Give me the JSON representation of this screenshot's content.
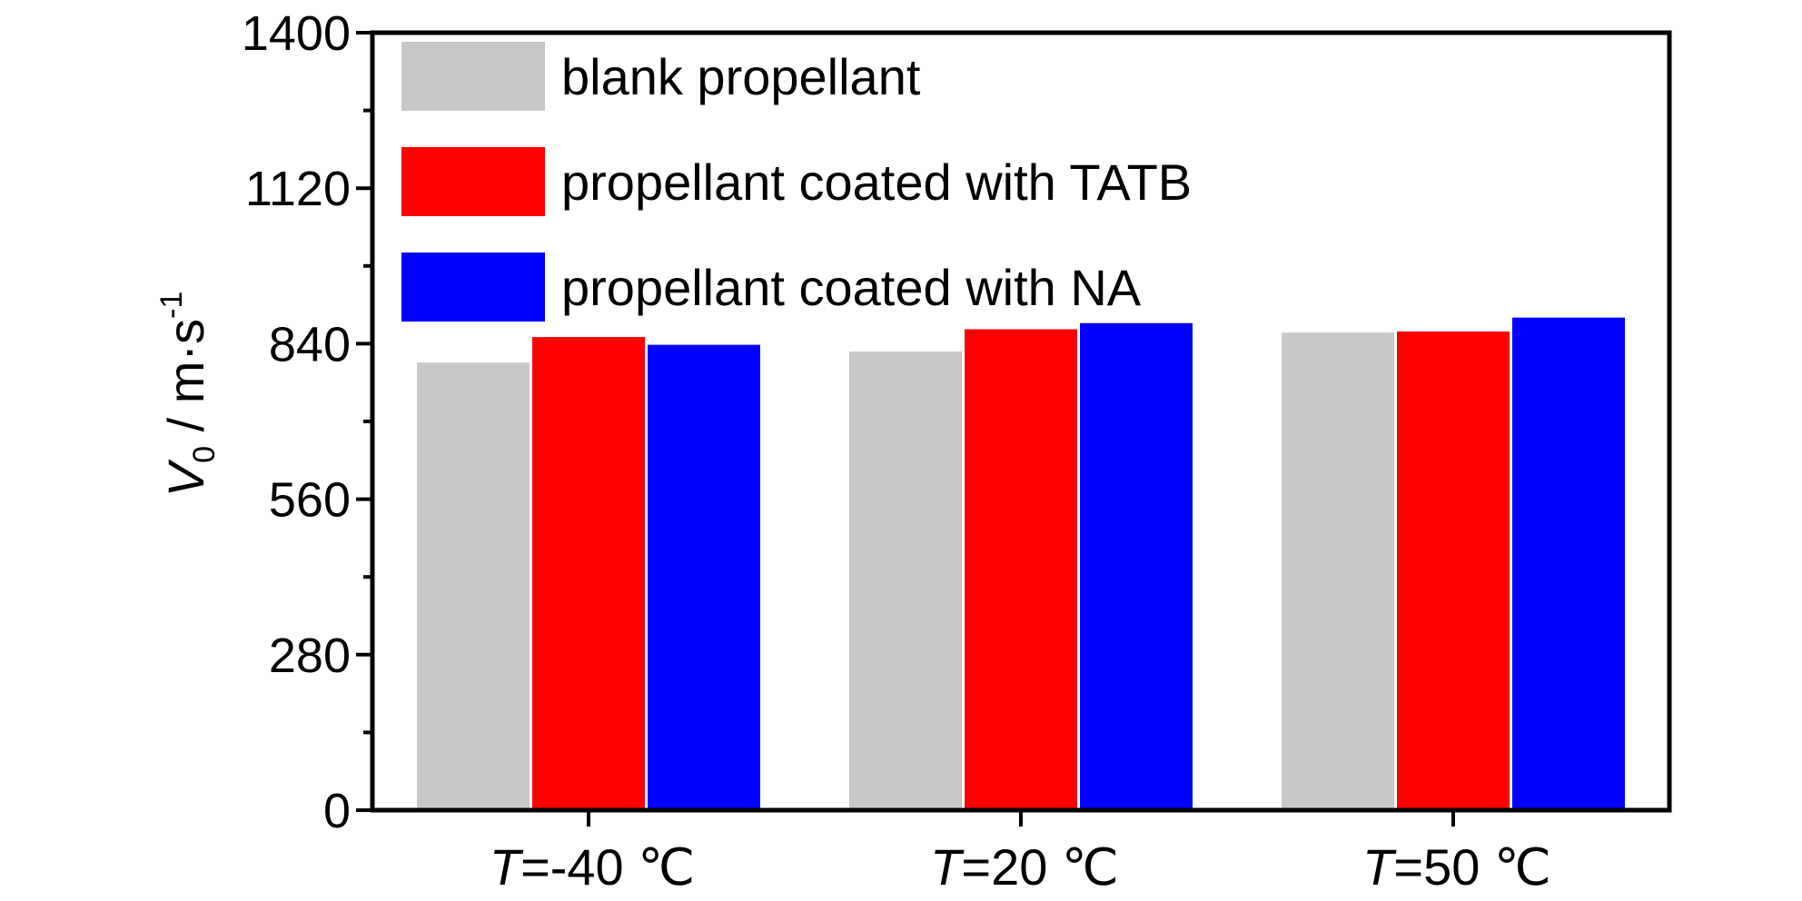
{
  "chart_data": {
    "type": "bar",
    "title": "",
    "xlabel": "",
    "ylabel": {
      "italic": "V",
      "subscript": "0",
      "rest": " / m·s",
      "superscript": "-1"
    },
    "ylim": [
      0,
      1400
    ],
    "yticks": [
      0,
      280,
      560,
      840,
      1120,
      1400
    ],
    "categories": [
      {
        "italic": "T",
        "rest": "=-40 ℃"
      },
      {
        "italic": "T",
        "rest": "=20 ℃"
      },
      {
        "italic": "T",
        "rest": "=50 ℃"
      }
    ],
    "series": [
      {
        "name": "blank propellant",
        "color": "#c8c8c8",
        "values": [
          806,
          826,
          860
        ]
      },
      {
        "name": "propellant coated with TATB",
        "color": "#ff0000",
        "values": [
          852,
          866,
          862
        ]
      },
      {
        "name": "propellant coated with NA",
        "color": "#0000ff",
        "values": [
          838,
          877,
          887
        ]
      }
    ],
    "legend_position": "top-left",
    "grid": false
  }
}
